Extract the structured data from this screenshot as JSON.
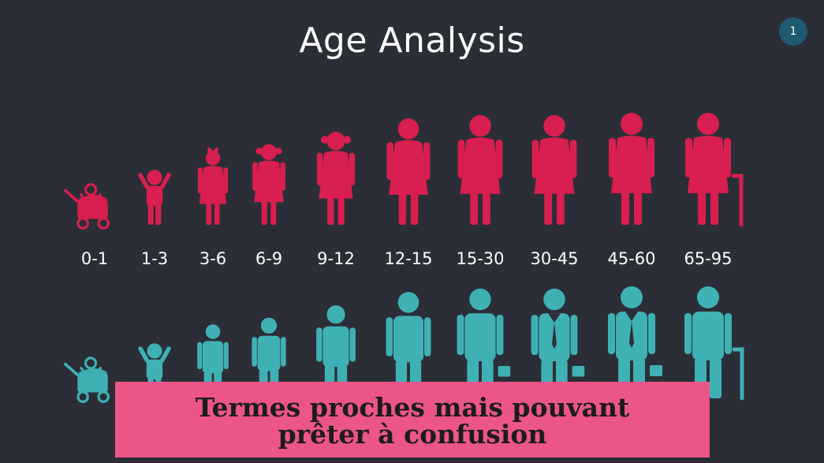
{
  "slide": {
    "title": "Age Analysis",
    "page_number": "1"
  },
  "colors": {
    "background": "#2b2e36",
    "female": "#d81f4f",
    "male": "#3fb1b5",
    "banner": "#ec5588"
  },
  "age_groups": [
    {
      "label": "0-1",
      "female_icon": "baby-stroller-icon",
      "male_icon": "baby-stroller-icon"
    },
    {
      "label": "1-3",
      "female_icon": "toddler-girl-icon",
      "male_icon": "toddler-boy-icon"
    },
    {
      "label": "3-6",
      "female_icon": "girl-icon",
      "male_icon": "boy-icon"
    },
    {
      "label": "6-9",
      "female_icon": "girl-icon",
      "male_icon": "boy-icon"
    },
    {
      "label": "9-12",
      "female_icon": "girl-icon",
      "male_icon": "boy-icon"
    },
    {
      "label": "12-15",
      "female_icon": "teen-girl-icon",
      "male_icon": "teen-boy-icon"
    },
    {
      "label": "15-30",
      "female_icon": "woman-icon",
      "male_icon": "man-icon"
    },
    {
      "label": "30-45",
      "female_icon": "woman-icon",
      "male_icon": "businessman-icon"
    },
    {
      "label": "45-60",
      "female_icon": "woman-icon",
      "male_icon": "businessman-icon"
    },
    {
      "label": "65-95",
      "female_icon": "elderly-woman-cane-icon",
      "male_icon": "elderly-man-cane-icon"
    }
  ],
  "banner": {
    "line1": "Termes proches mais pouvant",
    "line2": "prêter à confusion"
  }
}
